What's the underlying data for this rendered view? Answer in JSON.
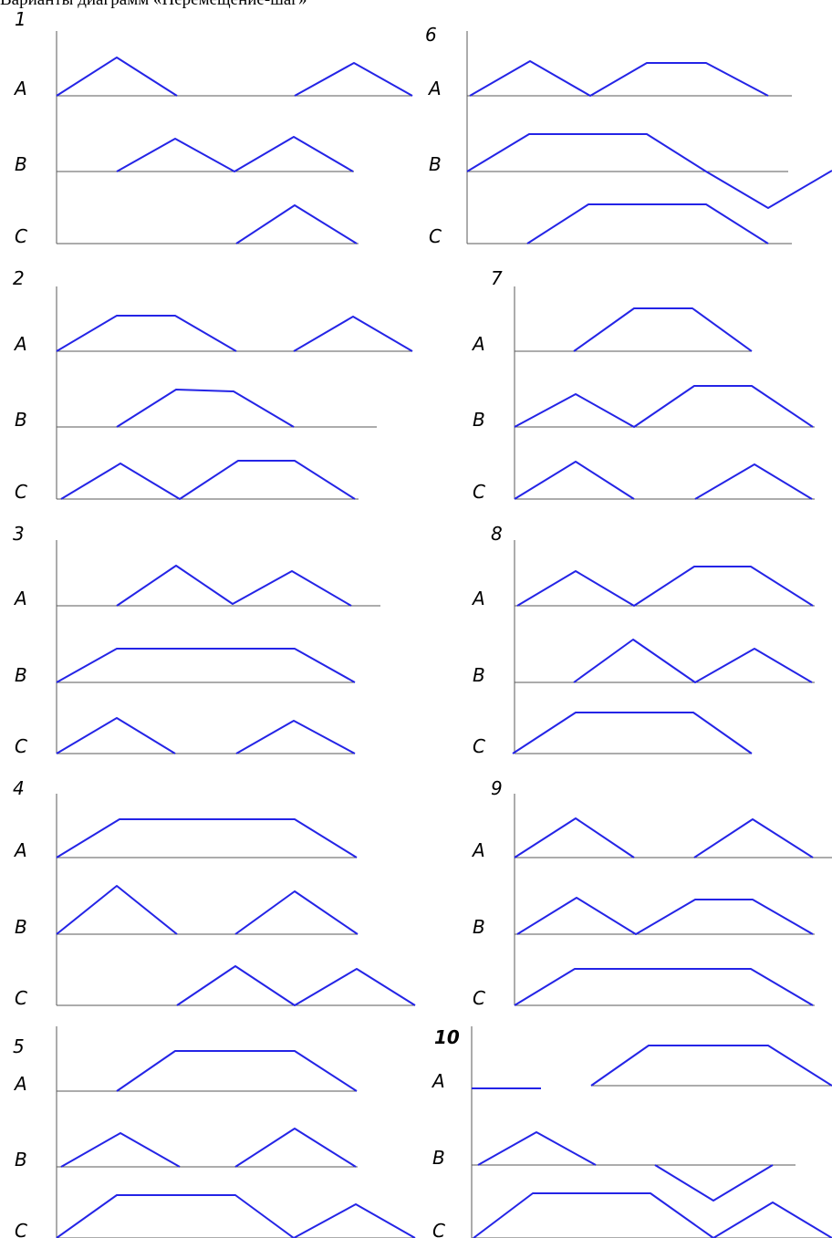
{
  "title": "Варианты диаграмм «Перемещение-шаг»",
  "colors": {
    "trace": "#2424e6",
    "axis": "#5a5a5a",
    "text": "#000000"
  },
  "row_labels": [
    "A",
    "B",
    "C"
  ],
  "variants": [
    {
      "number": "1",
      "bold": false,
      "axes": [
        [
          62,
          105,
          452
        ],
        [
          62,
          188,
          388
        ],
        [
          62,
          267,
          393
        ]
      ],
      "traces": [
        [
          [
            62,
            105
          ],
          [
            128,
            63
          ],
          [
            194,
            105
          ]
        ],
        [
          [
            323,
            105
          ],
          [
            388,
            69
          ],
          [
            452,
            105
          ]
        ],
        [
          [
            128,
            188
          ],
          [
            192,
            152
          ],
          [
            257,
            188
          ],
          [
            322,
            150
          ],
          [
            387,
            188
          ]
        ],
        [
          [
            259,
            267
          ],
          [
            323,
            225
          ],
          [
            391,
            267
          ]
        ]
      ]
    },
    {
      "number": "6",
      "bold": false,
      "axes": [
        [
          512,
          105,
          868
        ],
        [
          512,
          188,
          864
        ],
        [
          512,
          267,
          868
        ]
      ],
      "traces": [
        [
          [
            515,
            105
          ],
          [
            581,
            67
          ],
          [
            647,
            105
          ],
          [
            709,
            69
          ],
          [
            774,
            69
          ],
          [
            842,
            105
          ]
        ],
        [
          [
            512,
            188
          ],
          [
            580,
            147
          ],
          [
            709,
            147
          ],
          [
            774,
            188
          ],
          [
            842,
            228
          ],
          [
            912,
            187
          ]
        ],
        [
          [
            578,
            267
          ],
          [
            645,
            224
          ],
          [
            774,
            224
          ],
          [
            842,
            267
          ]
        ]
      ]
    },
    {
      "number": "2",
      "bold": false,
      "axes": [
        [
          62,
          385,
          452
        ],
        [
          62,
          468,
          413
        ],
        [
          62,
          547,
          393
        ]
      ],
      "traces": [
        [
          [
            62,
            385
          ],
          [
            128,
            346
          ],
          [
            192,
            346
          ],
          [
            259,
            385
          ]
        ],
        [
          [
            322,
            385
          ],
          [
            387,
            347
          ],
          [
            452,
            385
          ]
        ],
        [
          [
            128,
            468
          ],
          [
            193,
            427
          ],
          [
            256,
            429
          ],
          [
            322,
            468
          ]
        ],
        [
          [
            67,
            547
          ],
          [
            132,
            508
          ],
          [
            197,
            547
          ],
          [
            261,
            505
          ],
          [
            323,
            505
          ],
          [
            389,
            547
          ]
        ]
      ]
    },
    {
      "number": "7",
      "bold": false,
      "axes": [
        [
          564,
          385,
          824
        ],
        [
          564,
          468,
          893
        ],
        [
          564,
          547,
          893
        ]
      ],
      "traces": [
        [
          [
            629,
            385
          ],
          [
            695,
            338
          ],
          [
            759,
            338
          ],
          [
            824,
            385
          ]
        ],
        [
          [
            564,
            468
          ],
          [
            631,
            432
          ],
          [
            695,
            468
          ],
          [
            761,
            423
          ],
          [
            824,
            423
          ],
          [
            891,
            468
          ]
        ],
        [
          [
            564,
            547
          ],
          [
            631,
            506
          ],
          [
            695,
            547
          ]
        ],
        [
          [
            762,
            547
          ],
          [
            827,
            509
          ],
          [
            890,
            547
          ]
        ]
      ]
    },
    {
      "number": "3",
      "bold": false,
      "axes": [
        [
          62,
          664,
          417
        ],
        [
          62,
          748,
          389
        ],
        [
          62,
          826,
          389
        ]
      ],
      "traces": [
        [
          [
            128,
            664
          ],
          [
            193,
            620
          ],
          [
            255,
            662
          ],
          [
            320,
            626
          ],
          [
            385,
            664
          ]
        ],
        [
          [
            62,
            748
          ],
          [
            128,
            711
          ],
          [
            323,
            711
          ],
          [
            389,
            748
          ]
        ],
        [
          [
            62,
            826
          ],
          [
            128,
            787
          ],
          [
            192,
            826
          ]
        ],
        [
          [
            259,
            826
          ],
          [
            322,
            790
          ],
          [
            389,
            826
          ]
        ]
      ]
    },
    {
      "number": "8",
      "bold": false,
      "axes": [
        [
          564,
          664,
          893
        ],
        [
          564,
          748,
          893
        ],
        [
          564,
          826,
          824
        ]
      ],
      "traces": [
        [
          [
            567,
            664
          ],
          [
            631,
            626
          ],
          [
            695,
            664
          ],
          [
            761,
            621
          ],
          [
            823,
            621
          ],
          [
            891,
            664
          ]
        ],
        [
          [
            629,
            748
          ],
          [
            694,
            701
          ],
          [
            762,
            748
          ],
          [
            827,
            711
          ],
          [
            890,
            748
          ]
        ],
        [
          [
            562,
            826
          ],
          [
            631,
            781
          ],
          [
            760,
            781
          ],
          [
            824,
            826
          ]
        ]
      ]
    },
    {
      "number": "4",
      "bold": false,
      "axes": [
        [
          62,
          940,
          391
        ],
        [
          62,
          1024,
          392
        ],
        [
          62,
          1102,
          455
        ]
      ],
      "traces": [
        [
          [
            62,
            940
          ],
          [
            131,
            898
          ],
          [
            323,
            898
          ],
          [
            391,
            940
          ]
        ],
        [
          [
            62,
            1024
          ],
          [
            128,
            971
          ],
          [
            194,
            1024
          ]
        ],
        [
          [
            258,
            1024
          ],
          [
            323,
            977
          ],
          [
            392,
            1024
          ]
        ],
        [
          [
            194,
            1102
          ],
          [
            258,
            1059
          ],
          [
            323,
            1102
          ],
          [
            391,
            1062
          ],
          [
            455,
            1102
          ]
        ]
      ]
    },
    {
      "number": "9",
      "bold": false,
      "axes": [
        [
          564,
          940,
          912
        ],
        [
          564,
          1024,
          893
        ],
        [
          564,
          1102,
          893
        ]
      ],
      "traces": [
        [
          [
            564,
            940
          ],
          [
            631,
            897
          ],
          [
            695,
            940
          ]
        ],
        [
          [
            761,
            940
          ],
          [
            825,
            898
          ],
          [
            891,
            940
          ]
        ],
        [
          [
            567,
            1024
          ],
          [
            632,
            984
          ],
          [
            697,
            1024
          ],
          [
            762,
            986
          ],
          [
            825,
            986
          ],
          [
            891,
            1024
          ]
        ],
        [
          [
            564,
            1102
          ],
          [
            630,
            1062
          ],
          [
            823,
            1062
          ],
          [
            891,
            1102
          ]
        ]
      ]
    },
    {
      "number": "5",
      "bold": false,
      "axes": [
        [
          62,
          1196,
          391
        ],
        [
          62,
          1279,
          392
        ],
        [
          62,
          1357,
          455
        ]
      ],
      "traces": [
        [
          [
            128,
            1196
          ],
          [
            192,
            1152
          ],
          [
            323,
            1152
          ],
          [
            391,
            1196
          ]
        ],
        [
          [
            67,
            1279
          ],
          [
            132,
            1242
          ],
          [
            197,
            1279
          ]
        ],
        [
          [
            258,
            1279
          ],
          [
            323,
            1237
          ],
          [
            390,
            1279
          ]
        ],
        [
          [
            62,
            1357
          ],
          [
            128,
            1310
          ],
          [
            258,
            1310
          ],
          [
            322,
            1357
          ],
          [
            390,
            1320
          ],
          [
            455,
            1357
          ]
        ]
      ]
    },
    {
      "number": "10",
      "bold": true,
      "axes": [
        [
          517,
          1193,
          593
        ],
        [
          648,
          1190,
          912
        ],
        [
          517,
          1277,
          872
        ],
        [
          517,
          1357,
          912
        ]
      ],
      "traces": [
        [
          [
            517,
            1193
          ],
          [
            593,
            1193
          ]
        ],
        [
          [
            648,
            1190
          ],
          [
            711,
            1146
          ],
          [
            842,
            1146
          ],
          [
            912,
            1190
          ]
        ],
        [
          [
            524,
            1277
          ],
          [
            588,
            1241
          ],
          [
            653,
            1277
          ]
        ],
        [
          [
            718,
            1277
          ],
          [
            782,
            1316
          ],
          [
            847,
            1277
          ]
        ],
        [
          [
            519,
            1357
          ],
          [
            584,
            1308
          ],
          [
            713,
            1308
          ],
          [
            782,
            1357
          ],
          [
            847,
            1318
          ],
          [
            912,
            1357
          ]
        ]
      ]
    }
  ]
}
